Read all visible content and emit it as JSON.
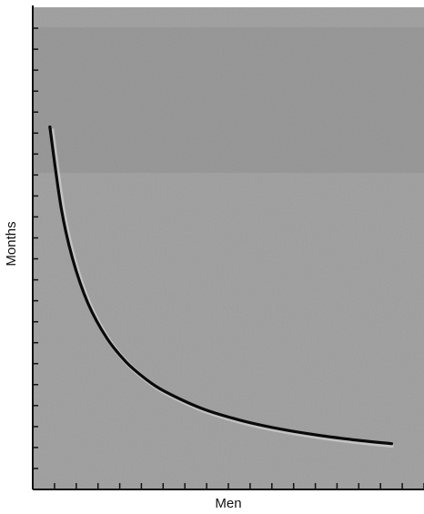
{
  "chart_data": {
    "type": "line",
    "title": "",
    "xlabel": "Men",
    "ylabel": "Months",
    "grid": false,
    "legend": "none",
    "x_tick_count": 18,
    "y_tick_count": 23,
    "series": [
      {
        "x": [
          1,
          1.3,
          1.6,
          2,
          2.5,
          3,
          3.5,
          4,
          5,
          6,
          7,
          8,
          9,
          10
        ],
        "y": [
          10,
          7.69,
          6.25,
          5,
          4,
          3.33,
          2.86,
          2.5,
          2,
          1.67,
          1.43,
          1.25,
          1.11,
          1
        ]
      }
    ],
    "xlim": [
      0.55,
      10.85
    ],
    "ylim": [
      -0.3,
      13.4
    ],
    "colors": {
      "curve": "#0a0a0a",
      "background": "#9d9d9d",
      "axis": "#111111"
    }
  }
}
